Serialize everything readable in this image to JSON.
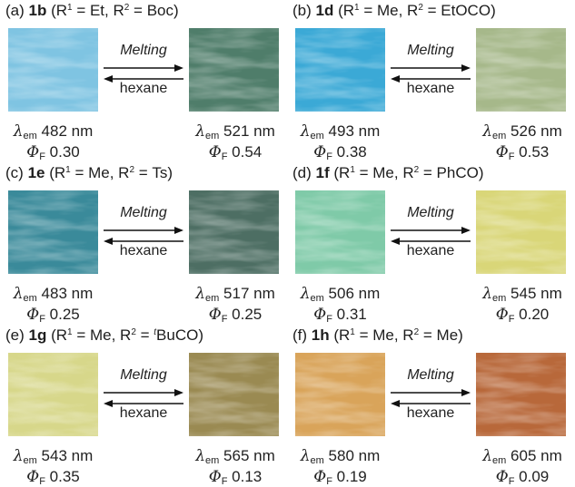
{
  "panels": [
    {
      "label": "(a)",
      "compound": "1b",
      "r1": "Et",
      "r2": "Boc",
      "r2_sup": "",
      "forward": "Melting",
      "backward": "hexane",
      "left": {
        "lambda": "482 nm",
        "phi": "0.30"
      },
      "right": {
        "lambda": "521 nm",
        "phi": "0.54"
      }
    },
    {
      "label": "(b)",
      "compound": "1d",
      "r1": "Me",
      "r2": "EtOCO",
      "r2_sup": "",
      "forward": "Melting",
      "backward": "hexane",
      "left": {
        "lambda": "493 nm",
        "phi": "0.38"
      },
      "right": {
        "lambda": "526 nm",
        "phi": "0.53"
      }
    },
    {
      "label": "(c)",
      "compound": "1e",
      "r1": "Me",
      "r2": "Ts",
      "r2_sup": "",
      "forward": "Melting",
      "backward": "hexane",
      "left": {
        "lambda": "483 nm",
        "phi": "0.25"
      },
      "right": {
        "lambda": "517 nm",
        "phi": "0.25"
      }
    },
    {
      "label": "(d)",
      "compound": "1f",
      "r1": "Me",
      "r2": "PhCO",
      "r2_sup": "",
      "forward": "Melting",
      "backward": "hexane",
      "left": {
        "lambda": "506 nm",
        "phi": "0.31"
      },
      "right": {
        "lambda": "545 nm",
        "phi": "0.20"
      }
    },
    {
      "label": "(e)",
      "compound": "1g",
      "r1": "Me",
      "r2": "BuCO",
      "r2_sup": "t",
      "forward": "Melting",
      "backward": "hexane",
      "left": {
        "lambda": "543 nm",
        "phi": "0.35"
      },
      "right": {
        "lambda": "565 nm",
        "phi": "0.13"
      }
    },
    {
      "label": "(f)",
      "compound": "1h",
      "r1": "Me",
      "r2": "Me",
      "r2_sup": "",
      "forward": "Melting",
      "backward": "hexane",
      "left": {
        "lambda": "580 nm",
        "phi": "0.19"
      },
      "right": {
        "lambda": "605 nm",
        "phi": "0.09"
      }
    }
  ],
  "symbols": {
    "lambda": "λ",
    "lambda_sub": "em",
    "phi": "Φ",
    "phi_sub": "F"
  },
  "image_colors": {
    "a_left": "#7fc4e2",
    "a_right": "#4f7d6a",
    "b_left": "#3ba9d6",
    "b_right": "#a6b88a",
    "c_left": "#3a8a9a",
    "c_right": "#4d6e63",
    "d_left": "#7fcaa8",
    "d_right": "#d9d678",
    "e_left": "#d7d78a",
    "e_right": "#9a8a52",
    "f_left": "#d9a45a",
    "f_right": "#b8683a"
  }
}
